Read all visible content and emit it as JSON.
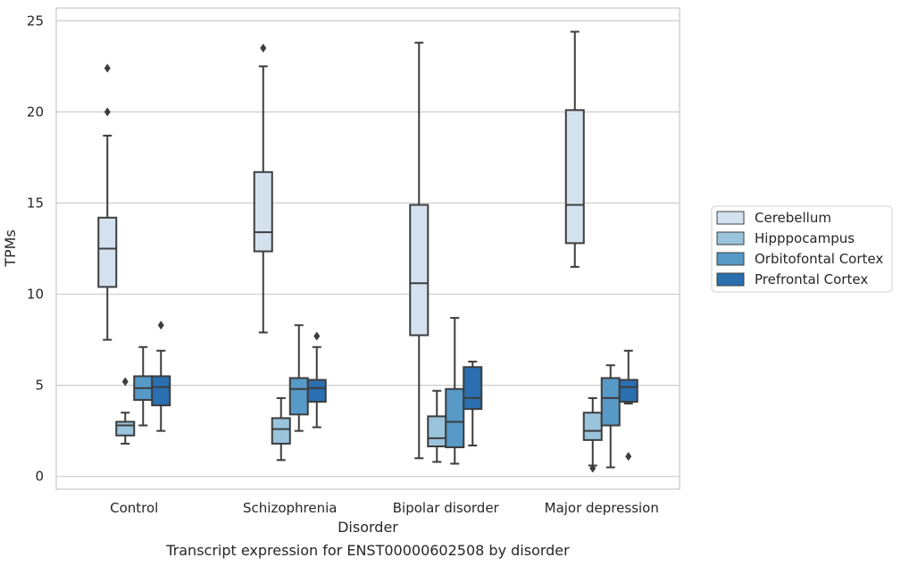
{
  "chart_data": {
    "type": "box",
    "title": "",
    "caption": "Transcript expression for ENST00000602508 by disorder",
    "xlabel": "Disorder",
    "ylabel": "TPMs",
    "ylim": [
      -0.7,
      25.7
    ],
    "yticks": [
      0,
      5,
      10,
      15,
      20,
      25
    ],
    "grid": "horizontal",
    "legend_position": "right",
    "categories": [
      "Control",
      "Schizophrenia",
      "Bipolar disorder",
      "Major depression"
    ],
    "series": [
      {
        "name": "Cerebellum",
        "color": "#d4e2f0",
        "boxes": [
          {
            "whislo": 7.5,
            "q1": 10.4,
            "med": 12.5,
            "q3": 14.2,
            "whishi": 18.7,
            "fliers": [
              20.0,
              22.4
            ]
          },
          {
            "whislo": 7.9,
            "q1": 12.35,
            "med": 13.4,
            "q3": 16.7,
            "whishi": 22.5,
            "fliers": [
              23.5
            ]
          },
          {
            "whislo": 1.0,
            "q1": 7.75,
            "med": 10.6,
            "q3": 14.9,
            "whishi": 23.8,
            "fliers": []
          },
          {
            "whislo": 11.5,
            "q1": 12.8,
            "med": 14.9,
            "q3": 20.1,
            "whishi": 24.4,
            "fliers": []
          }
        ]
      },
      {
        "name": "Hipppocampus",
        "color": "#9ac3dc",
        "boxes": [
          {
            "whislo": 1.8,
            "q1": 2.25,
            "med": 2.8,
            "q3": 3.0,
            "whishi": 3.5,
            "fliers": [
              5.2
            ]
          },
          {
            "whislo": 0.9,
            "q1": 1.8,
            "med": 2.6,
            "q3": 3.2,
            "whishi": 4.3,
            "fliers": []
          },
          {
            "whislo": 0.8,
            "q1": 1.65,
            "med": 2.1,
            "q3": 3.3,
            "whishi": 4.7,
            "fliers": []
          },
          {
            "whislo": 0.6,
            "q1": 2.0,
            "med": 2.5,
            "q3": 3.5,
            "whishi": 4.3,
            "fliers": [
              0.45
            ]
          }
        ]
      },
      {
        "name": "Orbitofontal Cortex",
        "color": "#5799c7",
        "boxes": [
          {
            "whislo": 2.8,
            "q1": 4.2,
            "med": 4.85,
            "q3": 5.5,
            "whishi": 7.1,
            "fliers": []
          },
          {
            "whislo": 2.5,
            "q1": 3.4,
            "med": 4.8,
            "q3": 5.4,
            "whishi": 8.3,
            "fliers": []
          },
          {
            "whislo": 0.7,
            "q1": 1.6,
            "med": 3.0,
            "q3": 4.8,
            "whishi": 8.7,
            "fliers": []
          },
          {
            "whislo": 0.5,
            "q1": 2.8,
            "med": 4.3,
            "q3": 5.4,
            "whishi": 6.1,
            "fliers": []
          }
        ]
      },
      {
        "name": "Prefrontal Cortex",
        "color": "#2a6fb0",
        "boxes": [
          {
            "whislo": 2.5,
            "q1": 3.9,
            "med": 4.9,
            "q3": 5.5,
            "whishi": 6.9,
            "fliers": [
              8.3
            ]
          },
          {
            "whislo": 2.7,
            "q1": 4.1,
            "med": 4.85,
            "q3": 5.3,
            "whishi": 7.1,
            "fliers": [
              7.7
            ]
          },
          {
            "whislo": 1.7,
            "q1": 3.7,
            "med": 4.3,
            "q3": 6.0,
            "whishi": 6.3,
            "fliers": []
          },
          {
            "whislo": 4.0,
            "q1": 4.1,
            "med": 4.9,
            "q3": 5.3,
            "whishi": 6.9,
            "fliers": [
              1.1
            ]
          }
        ]
      }
    ]
  }
}
